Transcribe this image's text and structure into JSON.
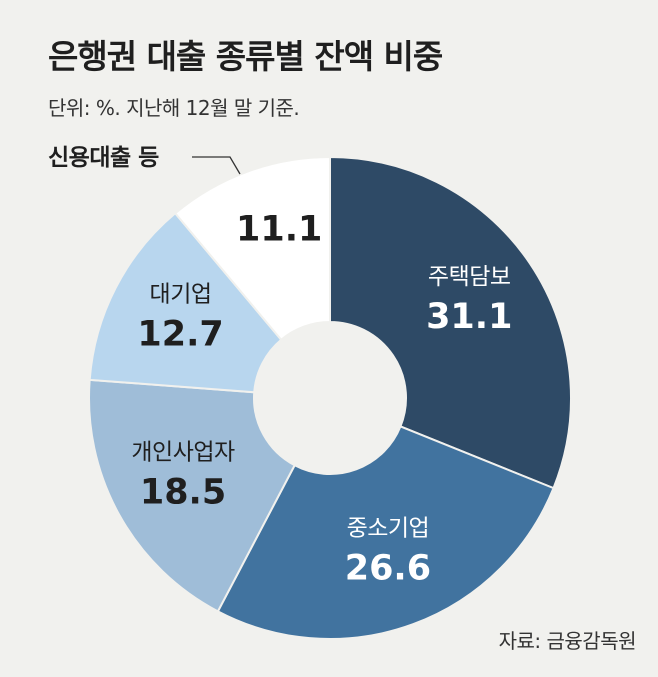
{
  "chart_data": {
    "type": "pie",
    "title": "은행권 대출 종류별 잔액 비중",
    "subtitle": "단위: %. 지난해 12월 말 기준.",
    "source": "자료: 금융감독원",
    "donut": true,
    "slices": [
      {
        "label": "주택담보",
        "value": 31.1,
        "display": "31.1",
        "color": "#2e4a66",
        "text_color": "#ffffff"
      },
      {
        "label": "중소기업",
        "value": 26.6,
        "display": "26.6",
        "color": "#41739f",
        "text_color": "#ffffff"
      },
      {
        "label": "개인사업자",
        "value": 18.5,
        "display": "18.5",
        "color": "#9fbdd8",
        "text_color": "#1f1f1f"
      },
      {
        "label": "대기업",
        "value": 12.7,
        "display": "12.7",
        "color": "#b8d6ee",
        "text_color": "#1f1f1f"
      },
      {
        "label": "신용대출 등",
        "value": 11.1,
        "display": "11.1",
        "color": "#ffffff",
        "text_color": "#1f1f1f",
        "callout": true
      }
    ],
    "colors": {
      "background": "#f1f1ee",
      "hole": "#f1f1ee"
    }
  }
}
